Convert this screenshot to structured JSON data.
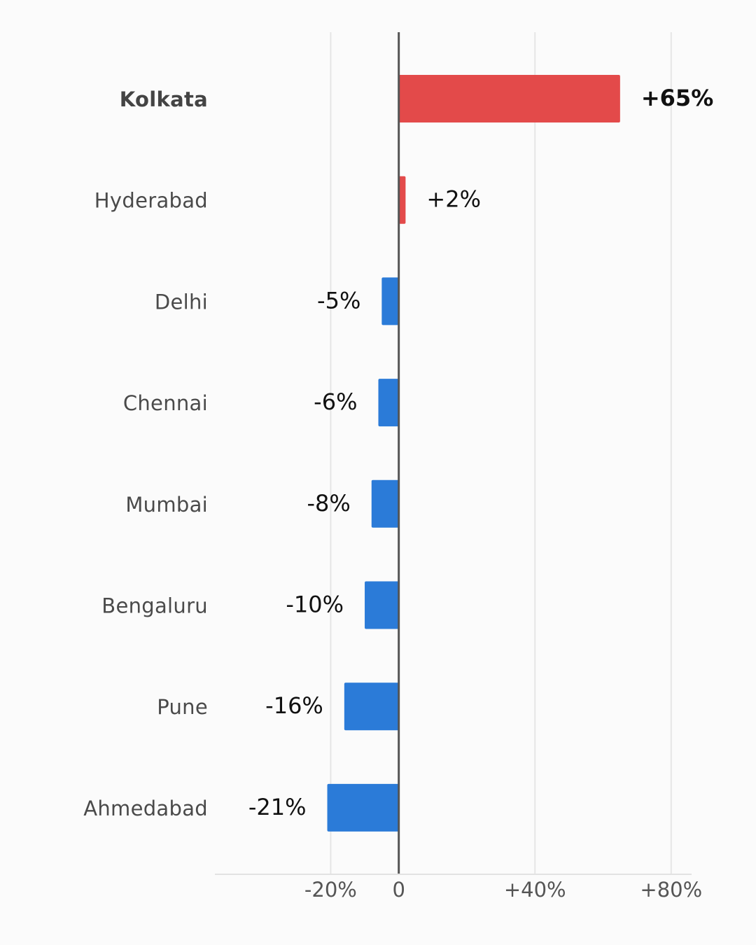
{
  "chart_data": {
    "type": "bar",
    "orientation": "horizontal",
    "title": "",
    "xlabel": "",
    "ylabel": "",
    "categories": [
      "Kolkata",
      "Hyderabad",
      "Delhi",
      "Chennai",
      "Mumbai",
      "Bengaluru",
      "Pune",
      "Ahmedabad"
    ],
    "values": [
      65,
      2,
      -5,
      -6,
      -8,
      -10,
      -16,
      -21
    ],
    "value_labels": [
      "+65%",
      "+2%",
      "-5%",
      "-6%",
      "-8%",
      "-10%",
      "-16%",
      "-21%"
    ],
    "highlight": "Kolkata",
    "xlim": [
      -54,
      86
    ],
    "xticks": [
      -20,
      0,
      40,
      80
    ],
    "xtick_labels": [
      "-20%",
      "0",
      "+40%",
      "+80%"
    ],
    "grid": "vertical",
    "colors": {
      "positive": "#e34a4a",
      "negative": "#2b7bd8",
      "zero_line": "#555555",
      "grid": "#e6e6e6",
      "background": "#fbfbfb"
    }
  }
}
